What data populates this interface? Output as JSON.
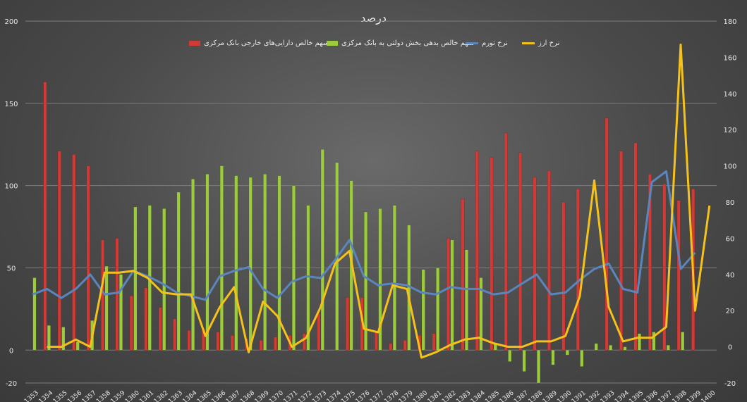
{
  "chart_data": {
    "type": "bar",
    "title": "درصد",
    "categories": [
      "1353",
      "1354",
      "1355",
      "1356",
      "1357",
      "1358",
      "1359",
      "1360",
      "1361",
      "1362",
      "1363",
      "1364",
      "1365",
      "1366",
      "1367",
      "1368",
      "1369",
      "1370",
      "1371",
      "1372",
      "1373",
      "1374",
      "1375",
      "1376",
      "1377",
      "1378",
      "1379",
      "1380",
      "1381",
      "1382",
      "1383",
      "1384",
      "1385",
      "1386",
      "1387",
      "1388",
      "1389",
      "1390",
      "1391",
      "1392",
      "1393",
      "1394",
      "1395",
      "1396",
      "1397",
      "1398",
      "1399",
      "1400"
    ],
    "left_axis": {
      "min": -20,
      "max": 200,
      "ticks": [
        -20,
        0,
        50,
        100,
        150,
        200
      ]
    },
    "right_axis": {
      "min": -20,
      "max": 180,
      "ticks": [
        -20,
        0,
        20,
        40,
        60,
        80,
        100,
        120,
        140,
        160,
        180
      ]
    },
    "series": [
      {
        "name": "سهم خالص دارایی‌های خارجی بانک مرکزی",
        "kind": "bar",
        "axis": "left",
        "color": "#d23a35",
        "values": [
          null,
          163,
          121,
          119,
          112,
          67,
          68,
          33,
          38,
          26,
          19,
          12,
          13,
          11,
          9,
          7,
          6,
          8,
          9,
          10,
          22,
          null,
          32,
          32,
          12,
          4,
          6,
          9,
          10,
          68,
          92,
          121,
          117,
          132,
          120,
          105,
          109,
          90,
          98,
          null,
          141,
          121,
          126,
          107,
          101,
          91,
          98,
          null
        ]
      },
      {
        "name": "سهم خالص بدهی بخش دولتی به بانک مرکزی",
        "kind": "bar",
        "axis": "left",
        "color": "#9ccc3c",
        "values": [
          44,
          15,
          14,
          5,
          18,
          51,
          46,
          87,
          88,
          86,
          96,
          104,
          107,
          112,
          106,
          105,
          107,
          106,
          100,
          88,
          122,
          114,
          103,
          84,
          86,
          88,
          76,
          49,
          50,
          67,
          61,
          44,
          4,
          -7,
          -13,
          -20,
          -9,
          -3,
          -10,
          4,
          3,
          2,
          10,
          11,
          3,
          11,
          null,
          null
        ]
      },
      {
        "name": "نرخ تورم",
        "kind": "line",
        "axis": "right",
        "color": "#5a86bd",
        "values": [
          29,
          32,
          27,
          32,
          40,
          29,
          30,
          42,
          39,
          35,
          30,
          28,
          26,
          39,
          42,
          44,
          32,
          27,
          36,
          39,
          38,
          48,
          59,
          39,
          34,
          35,
          34,
          30,
          29,
          33,
          32,
          32,
          29,
          30,
          35,
          40,
          29,
          30,
          37,
          43,
          46,
          32,
          30,
          91,
          97,
          43,
          52,
          null
        ]
      },
      {
        "name": "نرخ ارز",
        "kind": "line",
        "axis": "right",
        "color": "#f5c21a",
        "values": [
          null,
          0,
          0,
          4,
          0,
          41,
          41,
          42,
          38,
          30,
          29,
          29,
          6,
          22,
          33,
          -3,
          25,
          17,
          0,
          5,
          22,
          46,
          53,
          10,
          8,
          34,
          32,
          -6,
          -3,
          1,
          4,
          5,
          2,
          0,
          0,
          3,
          3,
          6,
          28,
          92,
          22,
          3,
          5,
          5,
          11,
          167,
          20,
          78
        ]
      }
    ]
  }
}
